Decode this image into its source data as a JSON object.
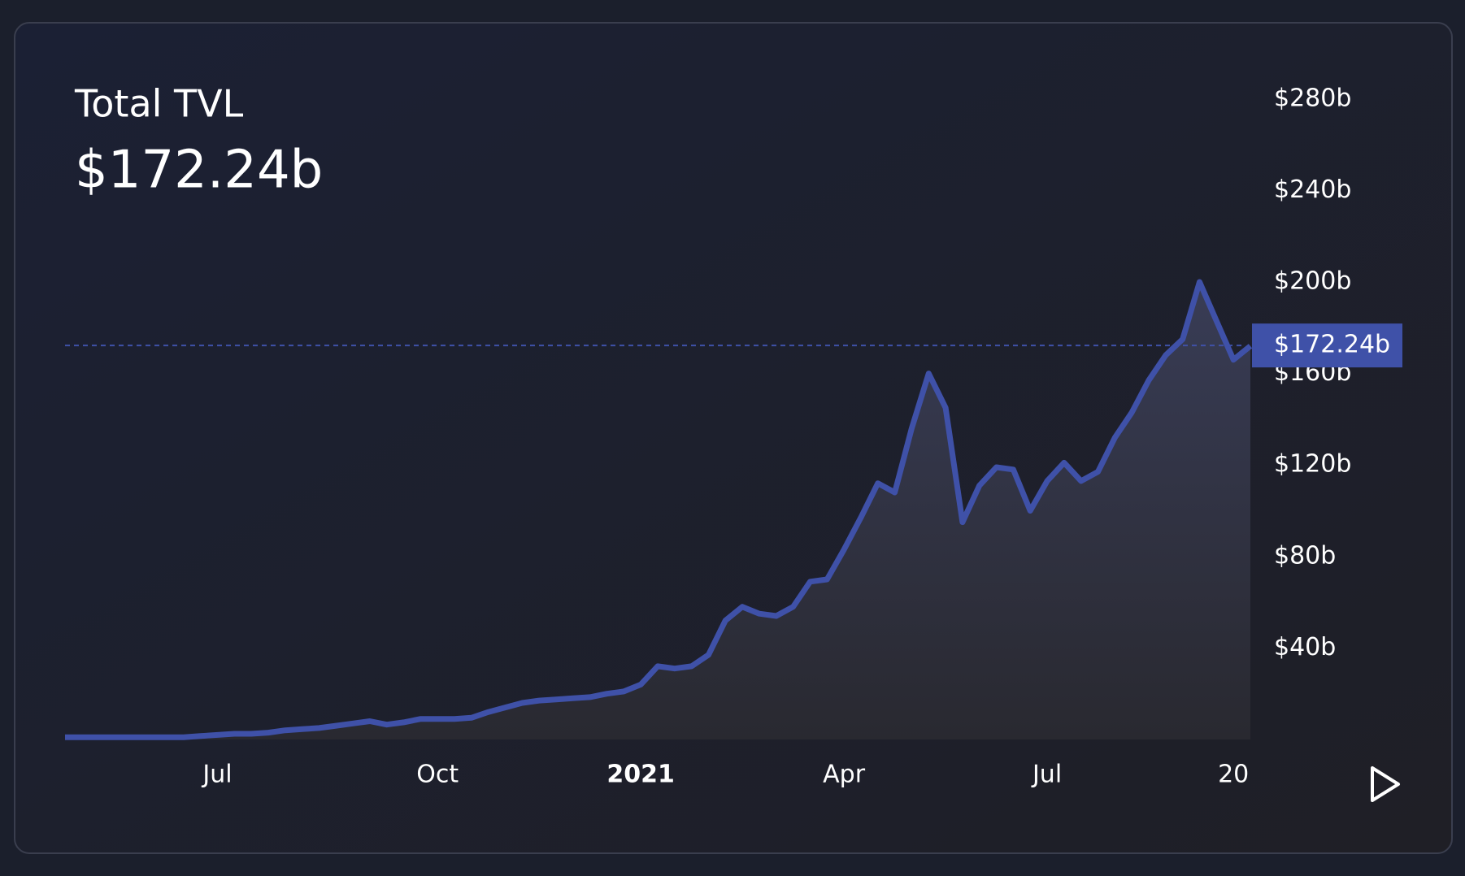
{
  "chart_data": {
    "type": "line",
    "title": "Total TVL",
    "value": 172.24,
    "value_label": "$172.24b",
    "categories": [
      null,
      null,
      null,
      null,
      null,
      null,
      null,
      null,
      null,
      "Jul",
      null,
      null,
      null,
      null,
      null,
      null,
      null,
      null,
      null,
      null,
      null,
      null,
      "Oct",
      null,
      null,
      null,
      null,
      null,
      null,
      null,
      null,
      null,
      null,
      null,
      "2021",
      null,
      null,
      null,
      null,
      null,
      null,
      null,
      null,
      null,
      null,
      null,
      "Apr",
      null,
      null,
      null,
      null,
      null,
      null,
      null,
      null,
      null,
      null,
      null,
      "Jul",
      null,
      null,
      null,
      null,
      null,
      null,
      null,
      null,
      null,
      null,
      "20",
      null
    ],
    "values": [
      1,
      1,
      1,
      1,
      1,
      1,
      1,
      1,
      1.5,
      2,
      2.5,
      2.5,
      3,
      4,
      4.5,
      5,
      6,
      7,
      8,
      6.5,
      7.5,
      9,
      9,
      9,
      9.5,
      12,
      14,
      16,
      17,
      17.5,
      18,
      18.5,
      20,
      21,
      24,
      32,
      31,
      32,
      37,
      52,
      58,
      55,
      54,
      58,
      69,
      70,
      83,
      97,
      112,
      108,
      136,
      160,
      145,
      95,
      111,
      119,
      118,
      100,
      113,
      121,
      113,
      117,
      132,
      143,
      157,
      168,
      175,
      200,
      183,
      166,
      172
    ],
    "color": "#3f51a8",
    "ylim": [
      0,
      290
    ],
    "yticks": [
      {
        "value": 40,
        "label": "$40b"
      },
      {
        "value": 80,
        "label": "$80b"
      },
      {
        "value": 120,
        "label": "$120b"
      },
      {
        "value": 160,
        "label": "$160b"
      },
      {
        "value": 200,
        "label": "$200b"
      },
      {
        "value": 240,
        "label": "$240b"
      },
      {
        "value": 280,
        "label": "$280b"
      }
    ],
    "grid": false
  }
}
